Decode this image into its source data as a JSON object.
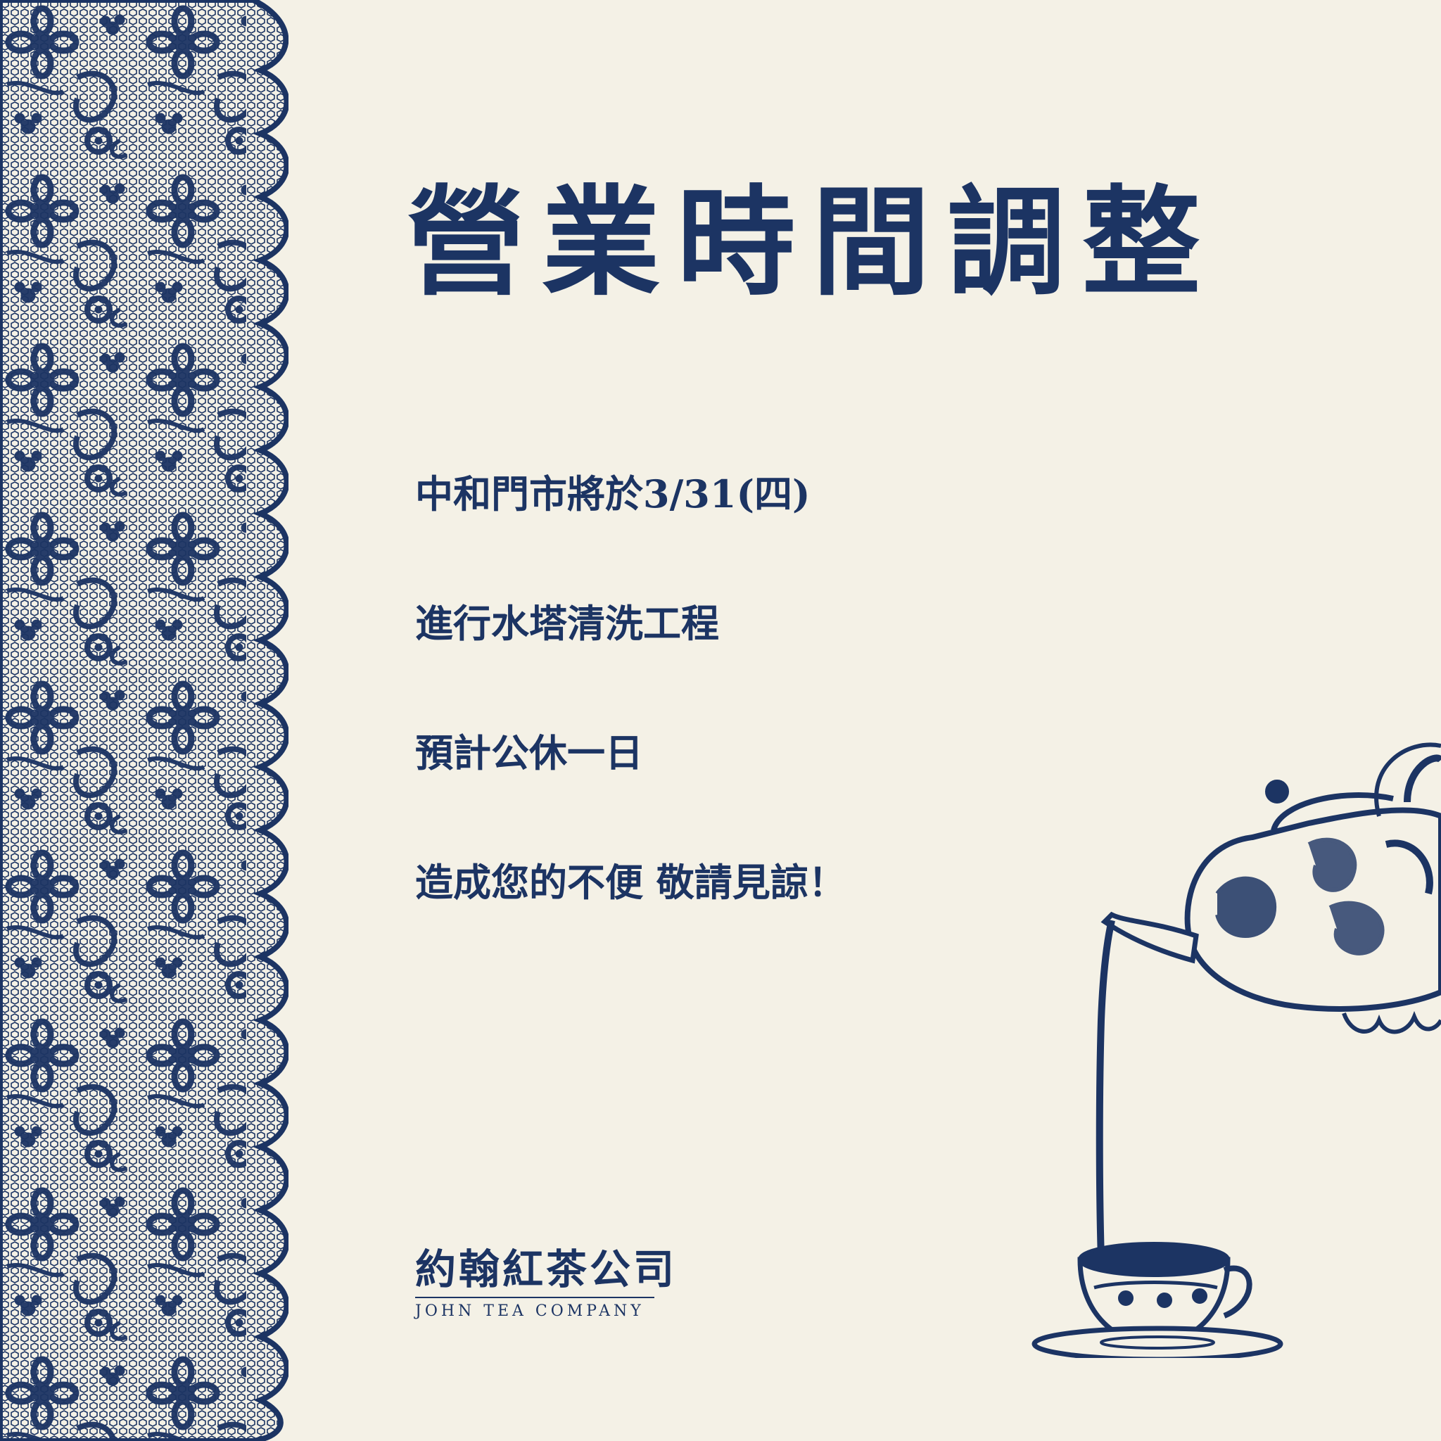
{
  "announcement": {
    "title": "營業時間調整",
    "lines": [
      "中和門市將於3/31(四)",
      "進行水塔清洗工程",
      "預計公休一日",
      "造成您的不便 敬請見諒！"
    ]
  },
  "brand": {
    "name_zh": "約翰紅茶公司",
    "name_en": "JOHN TEA COMPANY"
  },
  "colors": {
    "ink": "#1c3463",
    "paper": "#f4f1e6"
  },
  "decor": {
    "left_border": "lace-floral-icon",
    "illustration": "teapot-pouring-into-cup-icon"
  }
}
